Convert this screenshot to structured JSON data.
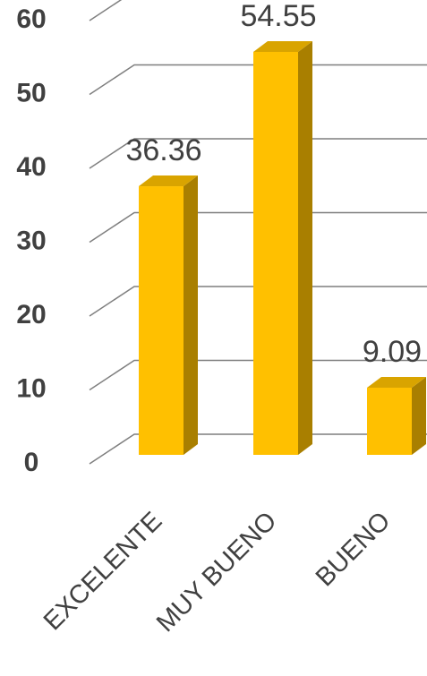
{
  "chart_data": {
    "type": "bar3d",
    "categories": [
      "EXCELENTE",
      "MUY BUENO",
      "BUENO"
    ],
    "values": [
      36.36,
      54.55,
      9.09
    ],
    "color": "#ffc000",
    "ylim": [
      0,
      60
    ],
    "yticks": [
      0,
      10,
      20,
      30,
      40,
      50,
      60
    ],
    "grid": true
  }
}
